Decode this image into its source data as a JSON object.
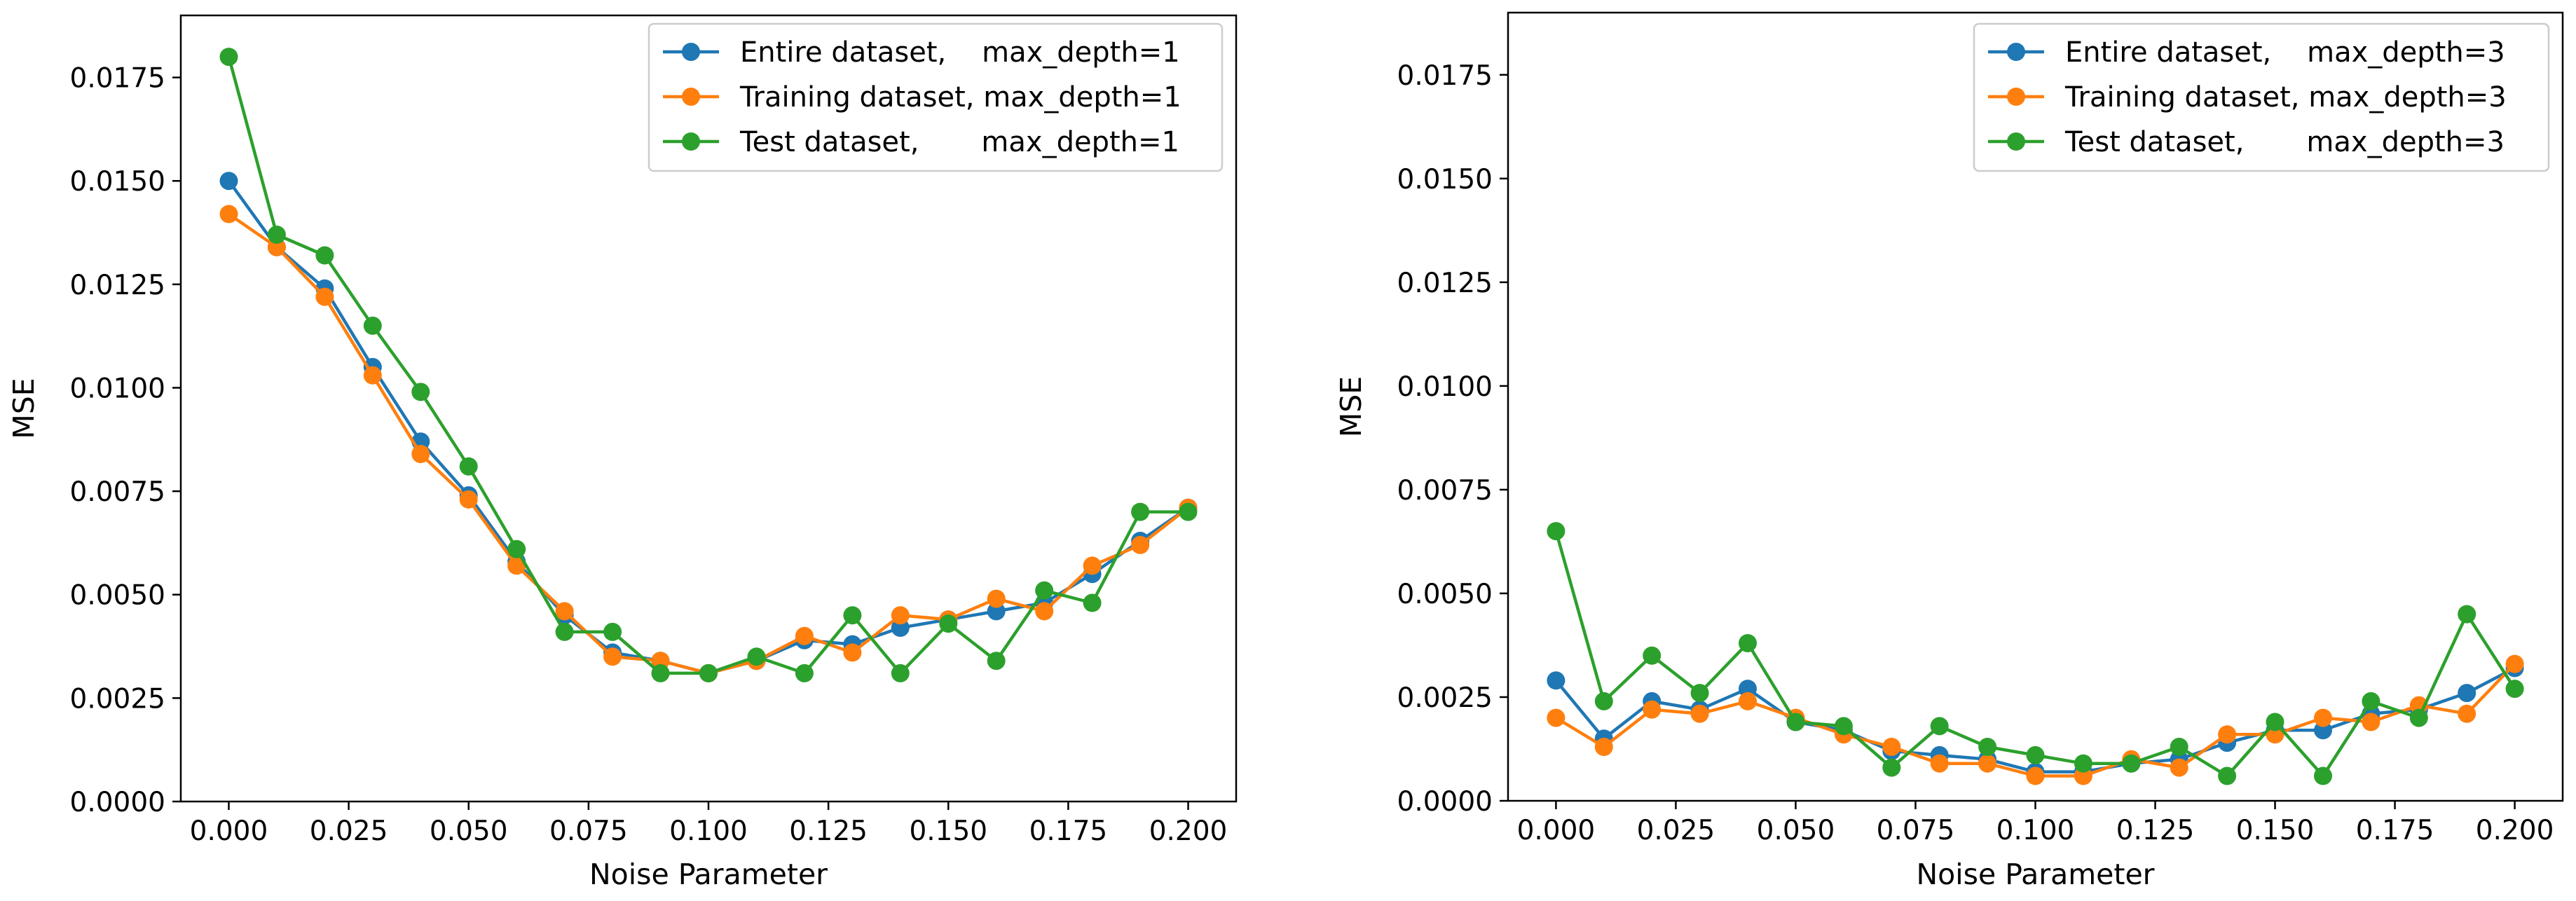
{
  "colors": {
    "entire": "#1f77b4",
    "training": "#ff7f0e",
    "test": "#2ca02c"
  },
  "chart_data": [
    {
      "type": "line",
      "xlabel": "Noise Parameter",
      "ylabel": "MSE",
      "xlim": [
        -0.01,
        0.21
      ],
      "ylim": [
        0,
        0.019
      ],
      "xticks": [
        0.0,
        0.025,
        0.05,
        0.075,
        0.1,
        0.125,
        0.15,
        0.175,
        0.2
      ],
      "xtick_labels": [
        "0.000",
        "0.025",
        "0.050",
        "0.075",
        "0.100",
        "0.125",
        "0.150",
        "0.175",
        "0.200"
      ],
      "yticks": [
        0.0,
        0.0025,
        0.005,
        0.0075,
        0.01,
        0.0125,
        0.015,
        0.0175
      ],
      "ytick_labels": [
        "0.0000",
        "0.0025",
        "0.0050",
        "0.0075",
        "0.0100",
        "0.0125",
        "0.0150",
        "0.0175"
      ],
      "legend_position": "top-right",
      "x": [
        0.0,
        0.01,
        0.02,
        0.03,
        0.04,
        0.05,
        0.06,
        0.07,
        0.08,
        0.09,
        0.1,
        0.11,
        0.12,
        0.13,
        0.14,
        0.15,
        0.16,
        0.17,
        0.18,
        0.19,
        0.2
      ],
      "series": [
        {
          "name": "Entire dataset,    max_depth=1",
          "color_key": "entire",
          "values": [
            0.015,
            0.0134,
            0.0124,
            0.0105,
            0.0087,
            0.0074,
            0.0058,
            0.0045,
            0.0036,
            0.0034,
            0.0031,
            0.0034,
            0.0039,
            0.0038,
            0.0042,
            0.0044,
            0.0046,
            0.0048,
            0.0055,
            0.0063,
            0.0071
          ]
        },
        {
          "name": "Training dataset, max_depth=1",
          "color_key": "training",
          "values": [
            0.0142,
            0.0134,
            0.0122,
            0.0103,
            0.0084,
            0.0073,
            0.0057,
            0.0046,
            0.0035,
            0.0034,
            0.0031,
            0.0034,
            0.004,
            0.0036,
            0.0045,
            0.0044,
            0.0049,
            0.0046,
            0.0057,
            0.0062,
            0.0071
          ]
        },
        {
          "name": "Test dataset,       max_depth=1",
          "color_key": "test",
          "values": [
            0.018,
            0.0137,
            0.0132,
            0.0115,
            0.0099,
            0.0081,
            0.0061,
            0.0041,
            0.0041,
            0.0031,
            0.0031,
            0.0035,
            0.0031,
            0.0045,
            0.0031,
            0.0043,
            0.0034,
            0.0051,
            0.0048,
            0.007,
            0.007
          ]
        }
      ]
    },
    {
      "type": "line",
      "xlabel": "Noise Parameter",
      "ylabel": "MSE",
      "xlim": [
        -0.01,
        0.21
      ],
      "ylim": [
        0,
        0.019
      ],
      "xticks": [
        0.0,
        0.025,
        0.05,
        0.075,
        0.1,
        0.125,
        0.15,
        0.175,
        0.2
      ],
      "xtick_labels": [
        "0.000",
        "0.025",
        "0.050",
        "0.075",
        "0.100",
        "0.125",
        "0.150",
        "0.175",
        "0.200"
      ],
      "yticks": [
        0.0,
        0.0025,
        0.005,
        0.0075,
        0.01,
        0.0125,
        0.015,
        0.0175
      ],
      "ytick_labels": [
        "0.0000",
        "0.0025",
        "0.0050",
        "0.0075",
        "0.0100",
        "0.0125",
        "0.0150",
        "0.0175"
      ],
      "legend_position": "top-right",
      "x": [
        0.0,
        0.01,
        0.02,
        0.03,
        0.04,
        0.05,
        0.06,
        0.07,
        0.08,
        0.09,
        0.1,
        0.11,
        0.12,
        0.13,
        0.14,
        0.15,
        0.16,
        0.17,
        0.18,
        0.19,
        0.2
      ],
      "series": [
        {
          "name": "Entire dataset,    max_depth=3",
          "color_key": "entire",
          "values": [
            0.0029,
            0.0015,
            0.0024,
            0.0022,
            0.0027,
            0.0019,
            0.0017,
            0.0012,
            0.0011,
            0.001,
            0.0007,
            0.0007,
            0.0009,
            0.001,
            0.0014,
            0.0017,
            0.0017,
            0.0021,
            0.0022,
            0.0026,
            0.0032
          ]
        },
        {
          "name": "Training dataset, max_depth=3",
          "color_key": "training",
          "values": [
            0.002,
            0.0013,
            0.0022,
            0.0021,
            0.0024,
            0.002,
            0.0016,
            0.0013,
            0.0009,
            0.0009,
            0.0006,
            0.0006,
            0.001,
            0.0008,
            0.0016,
            0.0016,
            0.002,
            0.0019,
            0.0023,
            0.0021,
            0.0033
          ]
        },
        {
          "name": "Test dataset,       max_depth=3",
          "color_key": "test",
          "values": [
            0.0065,
            0.0024,
            0.0035,
            0.0026,
            0.0038,
            0.0019,
            0.0018,
            0.0008,
            0.0018,
            0.0013,
            0.0011,
            0.0009,
            0.0009,
            0.0013,
            0.0006,
            0.0019,
            0.0006,
            0.0024,
            0.002,
            0.0045,
            0.0027
          ]
        }
      ]
    }
  ]
}
